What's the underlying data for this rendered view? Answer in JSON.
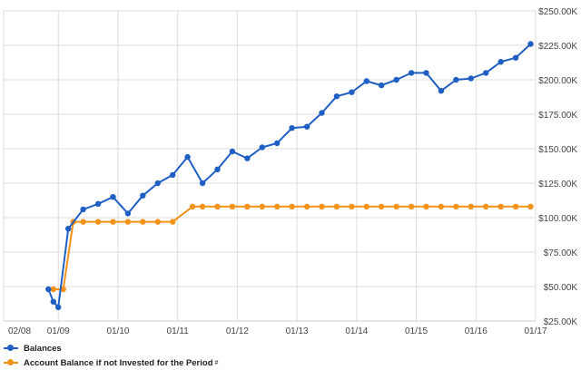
{
  "chart_data": {
    "type": "line",
    "x_ticks": [
      "02/08",
      "01/09",
      "01/10",
      "01/11",
      "01/12",
      "01/13",
      "01/14",
      "01/15",
      "01/16",
      "01/17"
    ],
    "y_ticks": [
      "$25.00K",
      "$50.00K",
      "$75.00K",
      "$100.00K",
      "$125.00K",
      "$150.00K",
      "$175.00K",
      "$200.00K",
      "$225.00K",
      "$250.00K"
    ],
    "ylim": [
      25000,
      250000
    ],
    "grid": true,
    "legend_position": "bottom-left",
    "series": [
      {
        "name": "Balances",
        "color": "#1f5fc4",
        "points": [
          [
            "2008-11",
            48000
          ],
          [
            "2008-12",
            39000
          ],
          [
            "2009-01",
            35000
          ],
          [
            "2009-03",
            92000
          ],
          [
            "2009-06",
            106000
          ],
          [
            "2009-09",
            110000
          ],
          [
            "2009-12",
            115000
          ],
          [
            "2010-03",
            103000
          ],
          [
            "2010-06",
            116000
          ],
          [
            "2010-09",
            125000
          ],
          [
            "2010-12",
            131000
          ],
          [
            "2011-03",
            144000
          ],
          [
            "2011-06",
            125000
          ],
          [
            "2011-09",
            135000
          ],
          [
            "2011-12",
            148000
          ],
          [
            "2012-03",
            143000
          ],
          [
            "2012-06",
            151000
          ],
          [
            "2012-09",
            154000
          ],
          [
            "2012-12",
            165000
          ],
          [
            "2013-03",
            166000
          ],
          [
            "2013-06",
            176000
          ],
          [
            "2013-09",
            188000
          ],
          [
            "2013-12",
            191000
          ],
          [
            "2014-03",
            199000
          ],
          [
            "2014-06",
            196000
          ],
          [
            "2014-09",
            200000
          ],
          [
            "2014-12",
            205000
          ],
          [
            "2015-03",
            205000
          ],
          [
            "2015-06",
            192000
          ],
          [
            "2015-09",
            200000
          ],
          [
            "2015-12",
            201000
          ],
          [
            "2016-03",
            205000
          ],
          [
            "2016-06",
            213000
          ],
          [
            "2016-09",
            216000
          ],
          [
            "2016-12",
            226000
          ]
        ]
      },
      {
        "name": "Account Balance if not Invested for the Period",
        "name_suffix": "#",
        "color": "#f29219",
        "points": [
          [
            "2008-12",
            48000
          ],
          [
            "2009-02",
            48000
          ],
          [
            "2009-04",
            97000
          ],
          [
            "2009-06",
            97000
          ],
          [
            "2009-09",
            97000
          ],
          [
            "2009-12",
            97000
          ],
          [
            "2010-03",
            97000
          ],
          [
            "2010-06",
            97000
          ],
          [
            "2010-09",
            97000
          ],
          [
            "2010-12",
            97000
          ],
          [
            "2011-04",
            108000
          ],
          [
            "2011-06",
            108000
          ],
          [
            "2011-09",
            108000
          ],
          [
            "2011-12",
            108000
          ],
          [
            "2012-03",
            108000
          ],
          [
            "2012-06",
            108000
          ],
          [
            "2012-09",
            108000
          ],
          [
            "2012-12",
            108000
          ],
          [
            "2013-03",
            108000
          ],
          [
            "2013-06",
            108000
          ],
          [
            "2013-09",
            108000
          ],
          [
            "2013-12",
            108000
          ],
          [
            "2014-03",
            108000
          ],
          [
            "2014-06",
            108000
          ],
          [
            "2014-09",
            108000
          ],
          [
            "2014-12",
            108000
          ],
          [
            "2015-03",
            108000
          ],
          [
            "2015-06",
            108000
          ],
          [
            "2015-09",
            108000
          ],
          [
            "2015-12",
            108000
          ],
          [
            "2016-03",
            108000
          ],
          [
            "2016-06",
            108000
          ],
          [
            "2016-09",
            108000
          ],
          [
            "2016-12",
            108000
          ]
        ]
      }
    ]
  }
}
